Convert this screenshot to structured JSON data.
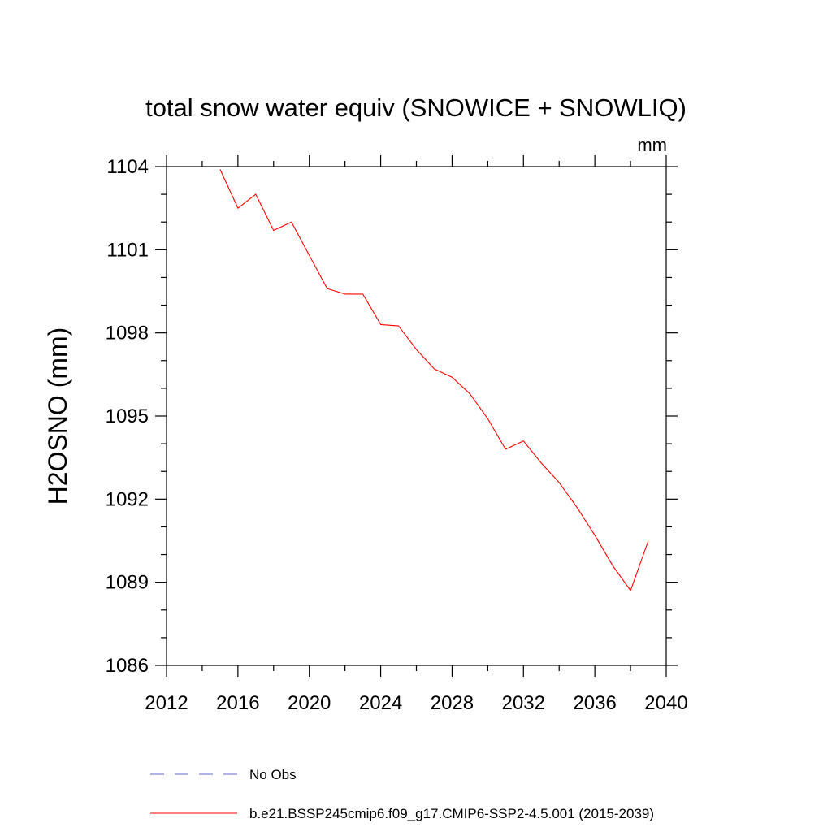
{
  "chart_data": {
    "type": "line",
    "title": "total snow water equiv (SNOWICE + SNOWLIQ)",
    "units_label": "mm",
    "ylabel": "H2OSNO  (mm)",
    "xlabel": "",
    "xlim": [
      2012,
      2040
    ],
    "ylim": [
      1086,
      1104
    ],
    "x_ticks": [
      2012,
      2016,
      2020,
      2024,
      2028,
      2032,
      2036,
      2040
    ],
    "x_tick_labels": [
      "2012",
      "2016",
      "2020",
      "2024",
      "2028",
      "2032",
      "2036",
      "2040"
    ],
    "y_ticks": [
      1086,
      1089,
      1092,
      1095,
      1098,
      1101,
      1104
    ],
    "y_tick_labels": [
      "1086",
      "1089",
      "1092",
      "1095",
      "1098",
      "1101",
      "1104"
    ],
    "grid": false,
    "legend_placement": "bottom",
    "legend": [
      {
        "label": "No Obs",
        "color": "#6666cc",
        "dashed": true
      },
      {
        "label": "b.e21.BSSP245cmip6.f09_g17.CMIP6-SSP2-4.5.001 (2015-2039)",
        "color": "#ff0000",
        "dashed": false
      }
    ],
    "series": [
      {
        "name": "b.e21.BSSP245cmip6.f09_g17.CMIP6-SSP2-4.5.001 (2015-2039)",
        "color": "#ff0000",
        "x": [
          2015,
          2016,
          2017,
          2018,
          2019,
          2020,
          2021,
          2022,
          2023,
          2024,
          2025,
          2026,
          2027,
          2028,
          2029,
          2030,
          2031,
          2032,
          2033,
          2034,
          2035,
          2036,
          2037,
          2038,
          2039
        ],
        "y": [
          1103.9,
          1102.5,
          1103.0,
          1101.7,
          1102.0,
          1100.8,
          1099.6,
          1099.4,
          1099.4,
          1098.3,
          1098.25,
          1097.4,
          1096.7,
          1096.4,
          1095.8,
          1094.9,
          1093.8,
          1094.1,
          1093.3,
          1092.6,
          1091.7,
          1090.7,
          1089.6,
          1088.7,
          1090.5
        ]
      }
    ]
  }
}
